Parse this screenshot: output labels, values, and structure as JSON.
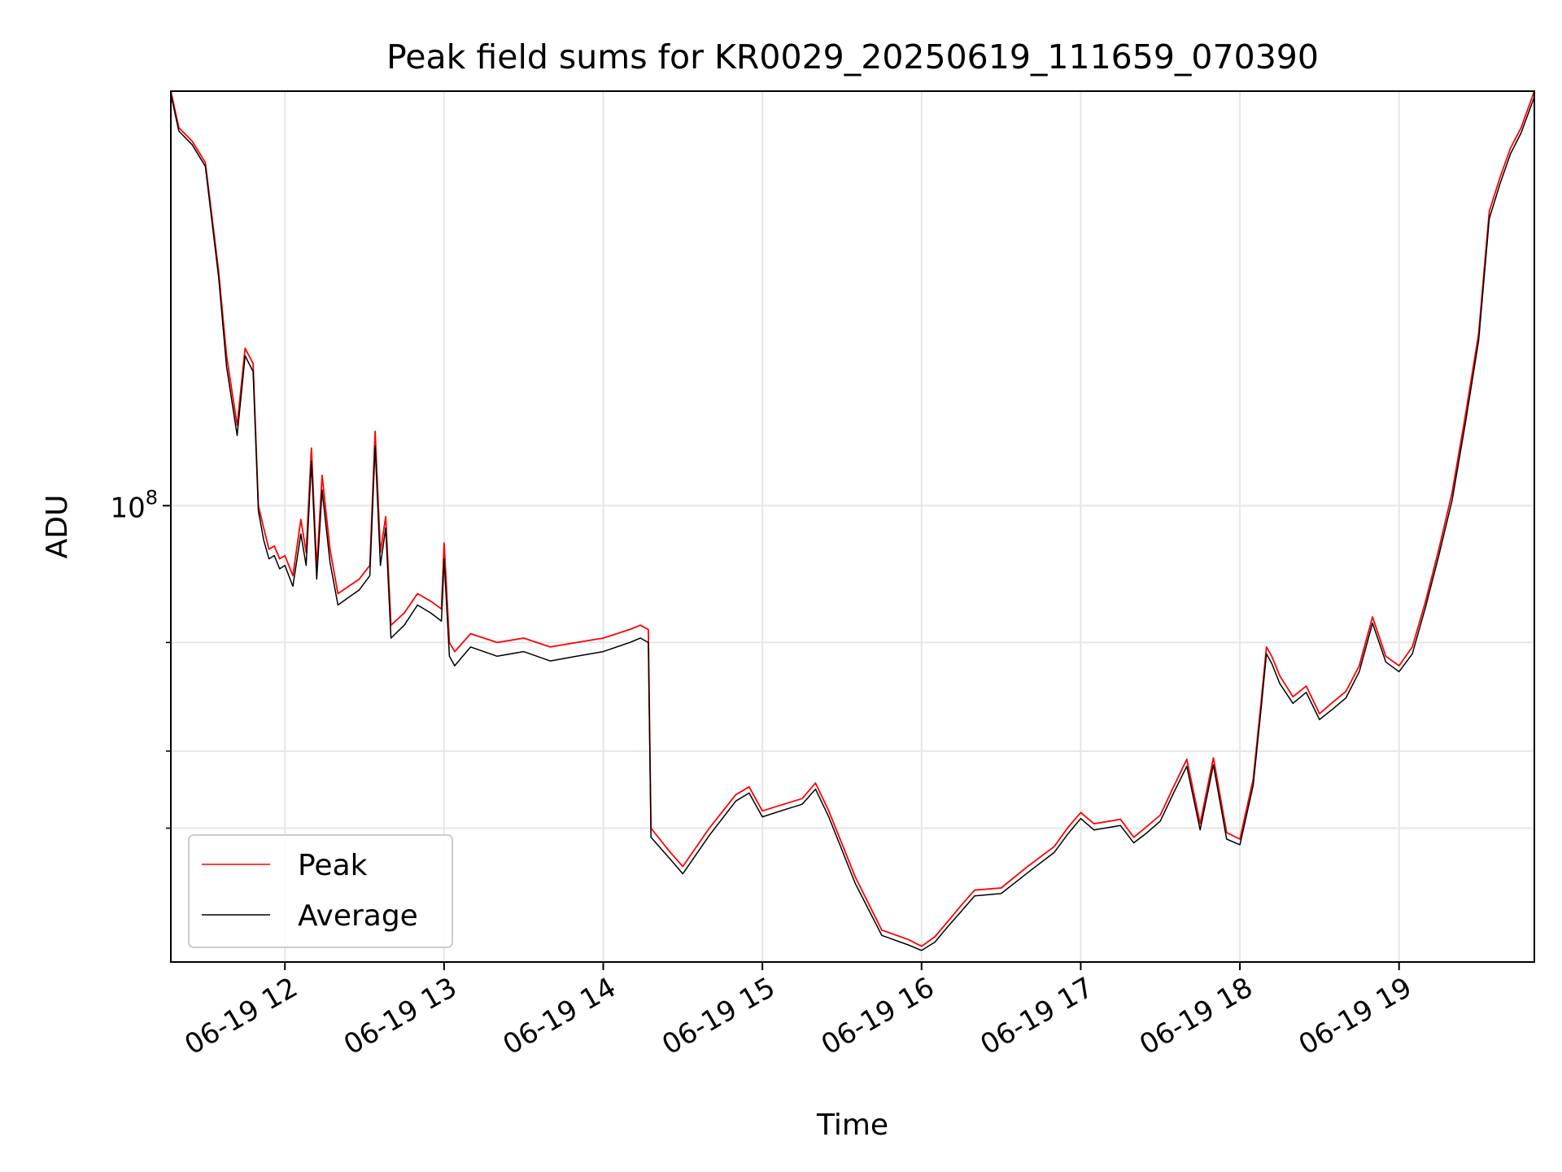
{
  "chart_data": {
    "type": "line",
    "title": "Peak field sums for KR0029_20250619_111659_070390",
    "xlabel": "Time",
    "ylabel": "ADU",
    "y_scale": "log",
    "ylim": [
      18200000,
      470000000
    ],
    "xlim": [
      "2025-06-19 11:17",
      "2025-06-19 19:51"
    ],
    "x_ticks": [
      "06-19 12",
      "06-19 13",
      "06-19 14",
      "06-19 15",
      "06-19 16",
      "06-19 17",
      "06-19 18",
      "06-19 19"
    ],
    "y_major_ticks": [
      {
        "value": 100000000,
        "label": "10",
        "exponent": "8"
      }
    ],
    "y_minor_ticks": [
      30000000,
      40000000,
      60000000
    ],
    "grid": true,
    "legend": {
      "placement": "lower-left",
      "entries": [
        "Peak",
        "Average"
      ]
    },
    "series": [
      {
        "name": "Peak",
        "color": "#ff0000",
        "x": [
          "2025-06-19 11:17",
          "2025-06-19 11:20",
          "2025-06-19 11:25",
          "2025-06-19 11:30",
          "2025-06-19 11:35",
          "2025-06-19 11:38",
          "2025-06-19 11:42",
          "2025-06-19 11:45",
          "2025-06-19 11:48",
          "2025-06-19 11:50",
          "2025-06-19 11:52",
          "2025-06-19 11:54",
          "2025-06-19 11:56",
          "2025-06-19 11:58",
          "2025-06-19 12:00",
          "2025-06-19 12:03",
          "2025-06-19 12:06",
          "2025-06-19 12:08",
          "2025-06-19 12:10",
          "2025-06-19 12:12",
          "2025-06-19 12:14",
          "2025-06-19 12:17",
          "2025-06-19 12:20",
          "2025-06-19 12:24",
          "2025-06-19 12:28",
          "2025-06-19 12:32",
          "2025-06-19 12:34",
          "2025-06-19 12:36",
          "2025-06-19 12:38",
          "2025-06-19 12:40",
          "2025-06-19 12:45",
          "2025-06-19 12:50",
          "2025-06-19 12:55",
          "2025-06-19 12:59",
          "2025-06-19 13:00",
          "2025-06-19 13:02",
          "2025-06-19 13:04",
          "2025-06-19 13:10",
          "2025-06-19 13:20",
          "2025-06-19 13:30",
          "2025-06-19 13:40",
          "2025-06-19 13:50",
          "2025-06-19 14:00",
          "2025-06-19 14:10",
          "2025-06-19 14:14",
          "2025-06-19 14:17",
          "2025-06-19 14:18",
          "2025-06-19 14:25",
          "2025-06-19 14:30",
          "2025-06-19 14:40",
          "2025-06-19 14:50",
          "2025-06-19 14:55",
          "2025-06-19 15:00",
          "2025-06-19 15:10",
          "2025-06-19 15:15",
          "2025-06-19 15:20",
          "2025-06-19 15:25",
          "2025-06-19 15:35",
          "2025-06-19 15:45",
          "2025-06-19 15:55",
          "2025-06-19 16:00",
          "2025-06-19 16:05",
          "2025-06-19 16:10",
          "2025-06-19 16:15",
          "2025-06-19 16:20",
          "2025-06-19 16:30",
          "2025-06-19 16:40",
          "2025-06-19 16:50",
          "2025-06-19 16:55",
          "2025-06-19 17:00",
          "2025-06-19 17:05",
          "2025-06-19 17:15",
          "2025-06-19 17:20",
          "2025-06-19 17:25",
          "2025-06-19 17:30",
          "2025-06-19 17:35",
          "2025-06-19 17:40",
          "2025-06-19 17:45",
          "2025-06-19 17:50",
          "2025-06-19 17:55",
          "2025-06-19 18:00",
          "2025-06-19 18:05",
          "2025-06-19 18:08",
          "2025-06-19 18:10",
          "2025-06-19 18:12",
          "2025-06-19 18:15",
          "2025-06-19 18:20",
          "2025-06-19 18:25",
          "2025-06-19 18:30",
          "2025-06-19 18:35",
          "2025-06-19 18:40",
          "2025-06-19 18:45",
          "2025-06-19 18:50",
          "2025-06-19 18:55",
          "2025-06-19 19:00",
          "2025-06-19 19:05",
          "2025-06-19 19:10",
          "2025-06-19 19:15",
          "2025-06-19 19:20",
          "2025-06-19 19:25",
          "2025-06-19 19:30",
          "2025-06-19 19:34",
          "2025-06-19 19:38",
          "2025-06-19 19:42",
          "2025-06-19 19:46",
          "2025-06-19 19:51"
        ],
        "values": [
          470000000,
          410000000,
          390000000,
          360000000,
          240000000,
          175000000,
          135000000,
          180000000,
          170000000,
          100000000,
          92000000,
          85000000,
          86000000,
          82000000,
          83000000,
          77000000,
          95000000,
          84000000,
          124000000,
          79000000,
          112000000,
          85000000,
          72000000,
          74000000,
          76000000,
          80000000,
          132000000,
          84000000,
          96000000,
          64000000,
          67000000,
          72000000,
          70000000,
          68000000,
          87000000,
          60000000,
          58000000,
          62000000,
          60000000,
          61000000,
          59000000,
          60000000,
          61000000,
          63000000,
          64000000,
          63000000,
          30000000,
          27500000,
          26000000,
          30000000,
          34000000,
          35000000,
          32000000,
          33000000,
          33500000,
          35500000,
          32000000,
          25000000,
          20500000,
          19800000,
          19300000,
          20000000,
          21200000,
          22500000,
          23800000,
          24000000,
          26000000,
          28000000,
          30000000,
          31800000,
          30500000,
          31000000,
          29000000,
          30200000,
          31500000,
          35000000,
          38800000,
          30500000,
          39000000,
          29500000,
          28800000,
          36000000,
          48000000,
          59000000,
          57000000,
          53000000,
          49000000,
          51000000,
          46000000,
          48000000,
          50000000,
          55000000,
          66000000,
          57000000,
          55000000,
          59000000,
          70000000,
          85000000,
          105000000,
          140000000,
          190000000,
          300000000,
          340000000,
          380000000,
          410000000,
          470000000
        ]
      },
      {
        "name": "Average",
        "color": "#000000",
        "x": [
          "2025-06-19 11:17",
          "2025-06-19 11:20",
          "2025-06-19 11:25",
          "2025-06-19 11:30",
          "2025-06-19 11:35",
          "2025-06-19 11:38",
          "2025-06-19 11:42",
          "2025-06-19 11:45",
          "2025-06-19 11:48",
          "2025-06-19 11:50",
          "2025-06-19 11:52",
          "2025-06-19 11:54",
          "2025-06-19 11:56",
          "2025-06-19 11:58",
          "2025-06-19 12:00",
          "2025-06-19 12:03",
          "2025-06-19 12:06",
          "2025-06-19 12:08",
          "2025-06-19 12:10",
          "2025-06-19 12:12",
          "2025-06-19 12:14",
          "2025-06-19 12:17",
          "2025-06-19 12:20",
          "2025-06-19 12:24",
          "2025-06-19 12:28",
          "2025-06-19 12:32",
          "2025-06-19 12:34",
          "2025-06-19 12:36",
          "2025-06-19 12:38",
          "2025-06-19 12:40",
          "2025-06-19 12:45",
          "2025-06-19 12:50",
          "2025-06-19 12:55",
          "2025-06-19 12:59",
          "2025-06-19 13:00",
          "2025-06-19 13:02",
          "2025-06-19 13:04",
          "2025-06-19 13:10",
          "2025-06-19 13:20",
          "2025-06-19 13:30",
          "2025-06-19 13:40",
          "2025-06-19 13:50",
          "2025-06-19 14:00",
          "2025-06-19 14:10",
          "2025-06-19 14:14",
          "2025-06-19 14:17",
          "2025-06-19 14:18",
          "2025-06-19 14:25",
          "2025-06-19 14:30",
          "2025-06-19 14:40",
          "2025-06-19 14:50",
          "2025-06-19 14:55",
          "2025-06-19 15:00",
          "2025-06-19 15:10",
          "2025-06-19 15:15",
          "2025-06-19 15:20",
          "2025-06-19 15:25",
          "2025-06-19 15:35",
          "2025-06-19 15:45",
          "2025-06-19 15:55",
          "2025-06-19 16:00",
          "2025-06-19 16:05",
          "2025-06-19 16:10",
          "2025-06-19 16:15",
          "2025-06-19 16:20",
          "2025-06-19 16:30",
          "2025-06-19 16:40",
          "2025-06-19 16:50",
          "2025-06-19 16:55",
          "2025-06-19 17:00",
          "2025-06-19 17:05",
          "2025-06-19 17:15",
          "2025-06-19 17:20",
          "2025-06-19 17:25",
          "2025-06-19 17:30",
          "2025-06-19 17:35",
          "2025-06-19 17:40",
          "2025-06-19 17:45",
          "2025-06-19 17:50",
          "2025-06-19 17:55",
          "2025-06-19 18:00",
          "2025-06-19 18:05",
          "2025-06-19 18:08",
          "2025-06-19 18:10",
          "2025-06-19 18:12",
          "2025-06-19 18:15",
          "2025-06-19 18:20",
          "2025-06-19 18:25",
          "2025-06-19 18:30",
          "2025-06-19 18:35",
          "2025-06-19 18:40",
          "2025-06-19 18:45",
          "2025-06-19 18:50",
          "2025-06-19 18:55",
          "2025-06-19 19:00",
          "2025-06-19 19:05",
          "2025-06-19 19:10",
          "2025-06-19 19:15",
          "2025-06-19 19:20",
          "2025-06-19 19:25",
          "2025-06-19 19:30",
          "2025-06-19 19:34",
          "2025-06-19 19:38",
          "2025-06-19 19:42",
          "2025-06-19 19:46",
          "2025-06-19 19:51"
        ],
        "values": [
          465000000,
          405000000,
          385000000,
          355000000,
          235000000,
          168000000,
          130000000,
          175000000,
          165000000,
          98000000,
          88000000,
          82000000,
          83000000,
          79000000,
          80000000,
          74000000,
          90000000,
          80000000,
          118000000,
          76000000,
          106000000,
          81000000,
          69000000,
          71000000,
          73000000,
          77000000,
          125000000,
          80000000,
          92000000,
          61000000,
          64000000,
          69000000,
          67000000,
          65000000,
          82000000,
          57000000,
          55000000,
          59000000,
          57000000,
          58000000,
          56000000,
          57000000,
          58000000,
          60000000,
          61000000,
          60000000,
          29000000,
          26800000,
          25300000,
          29200000,
          33200000,
          34200000,
          31300000,
          32300000,
          32800000,
          34700000,
          31300000,
          24400000,
          20100000,
          19400000,
          19000000,
          19600000,
          20800000,
          22000000,
          23300000,
          23500000,
          25400000,
          27400000,
          29300000,
          31100000,
          29800000,
          30300000,
          28400000,
          29500000,
          30800000,
          34200000,
          37800000,
          29800000,
          38000000,
          28800000,
          28200000,
          35200000,
          46800000,
          57500000,
          55500000,
          51500000,
          47800000,
          49800000,
          45000000,
          46800000,
          48800000,
          53800000,
          64500000,
          55800000,
          53800000,
          57500000,
          68500000,
          83000000,
          102000000,
          136000000,
          185000000,
          292000000,
          332000000,
          372000000,
          402000000,
          460000000
        ]
      }
    ]
  }
}
